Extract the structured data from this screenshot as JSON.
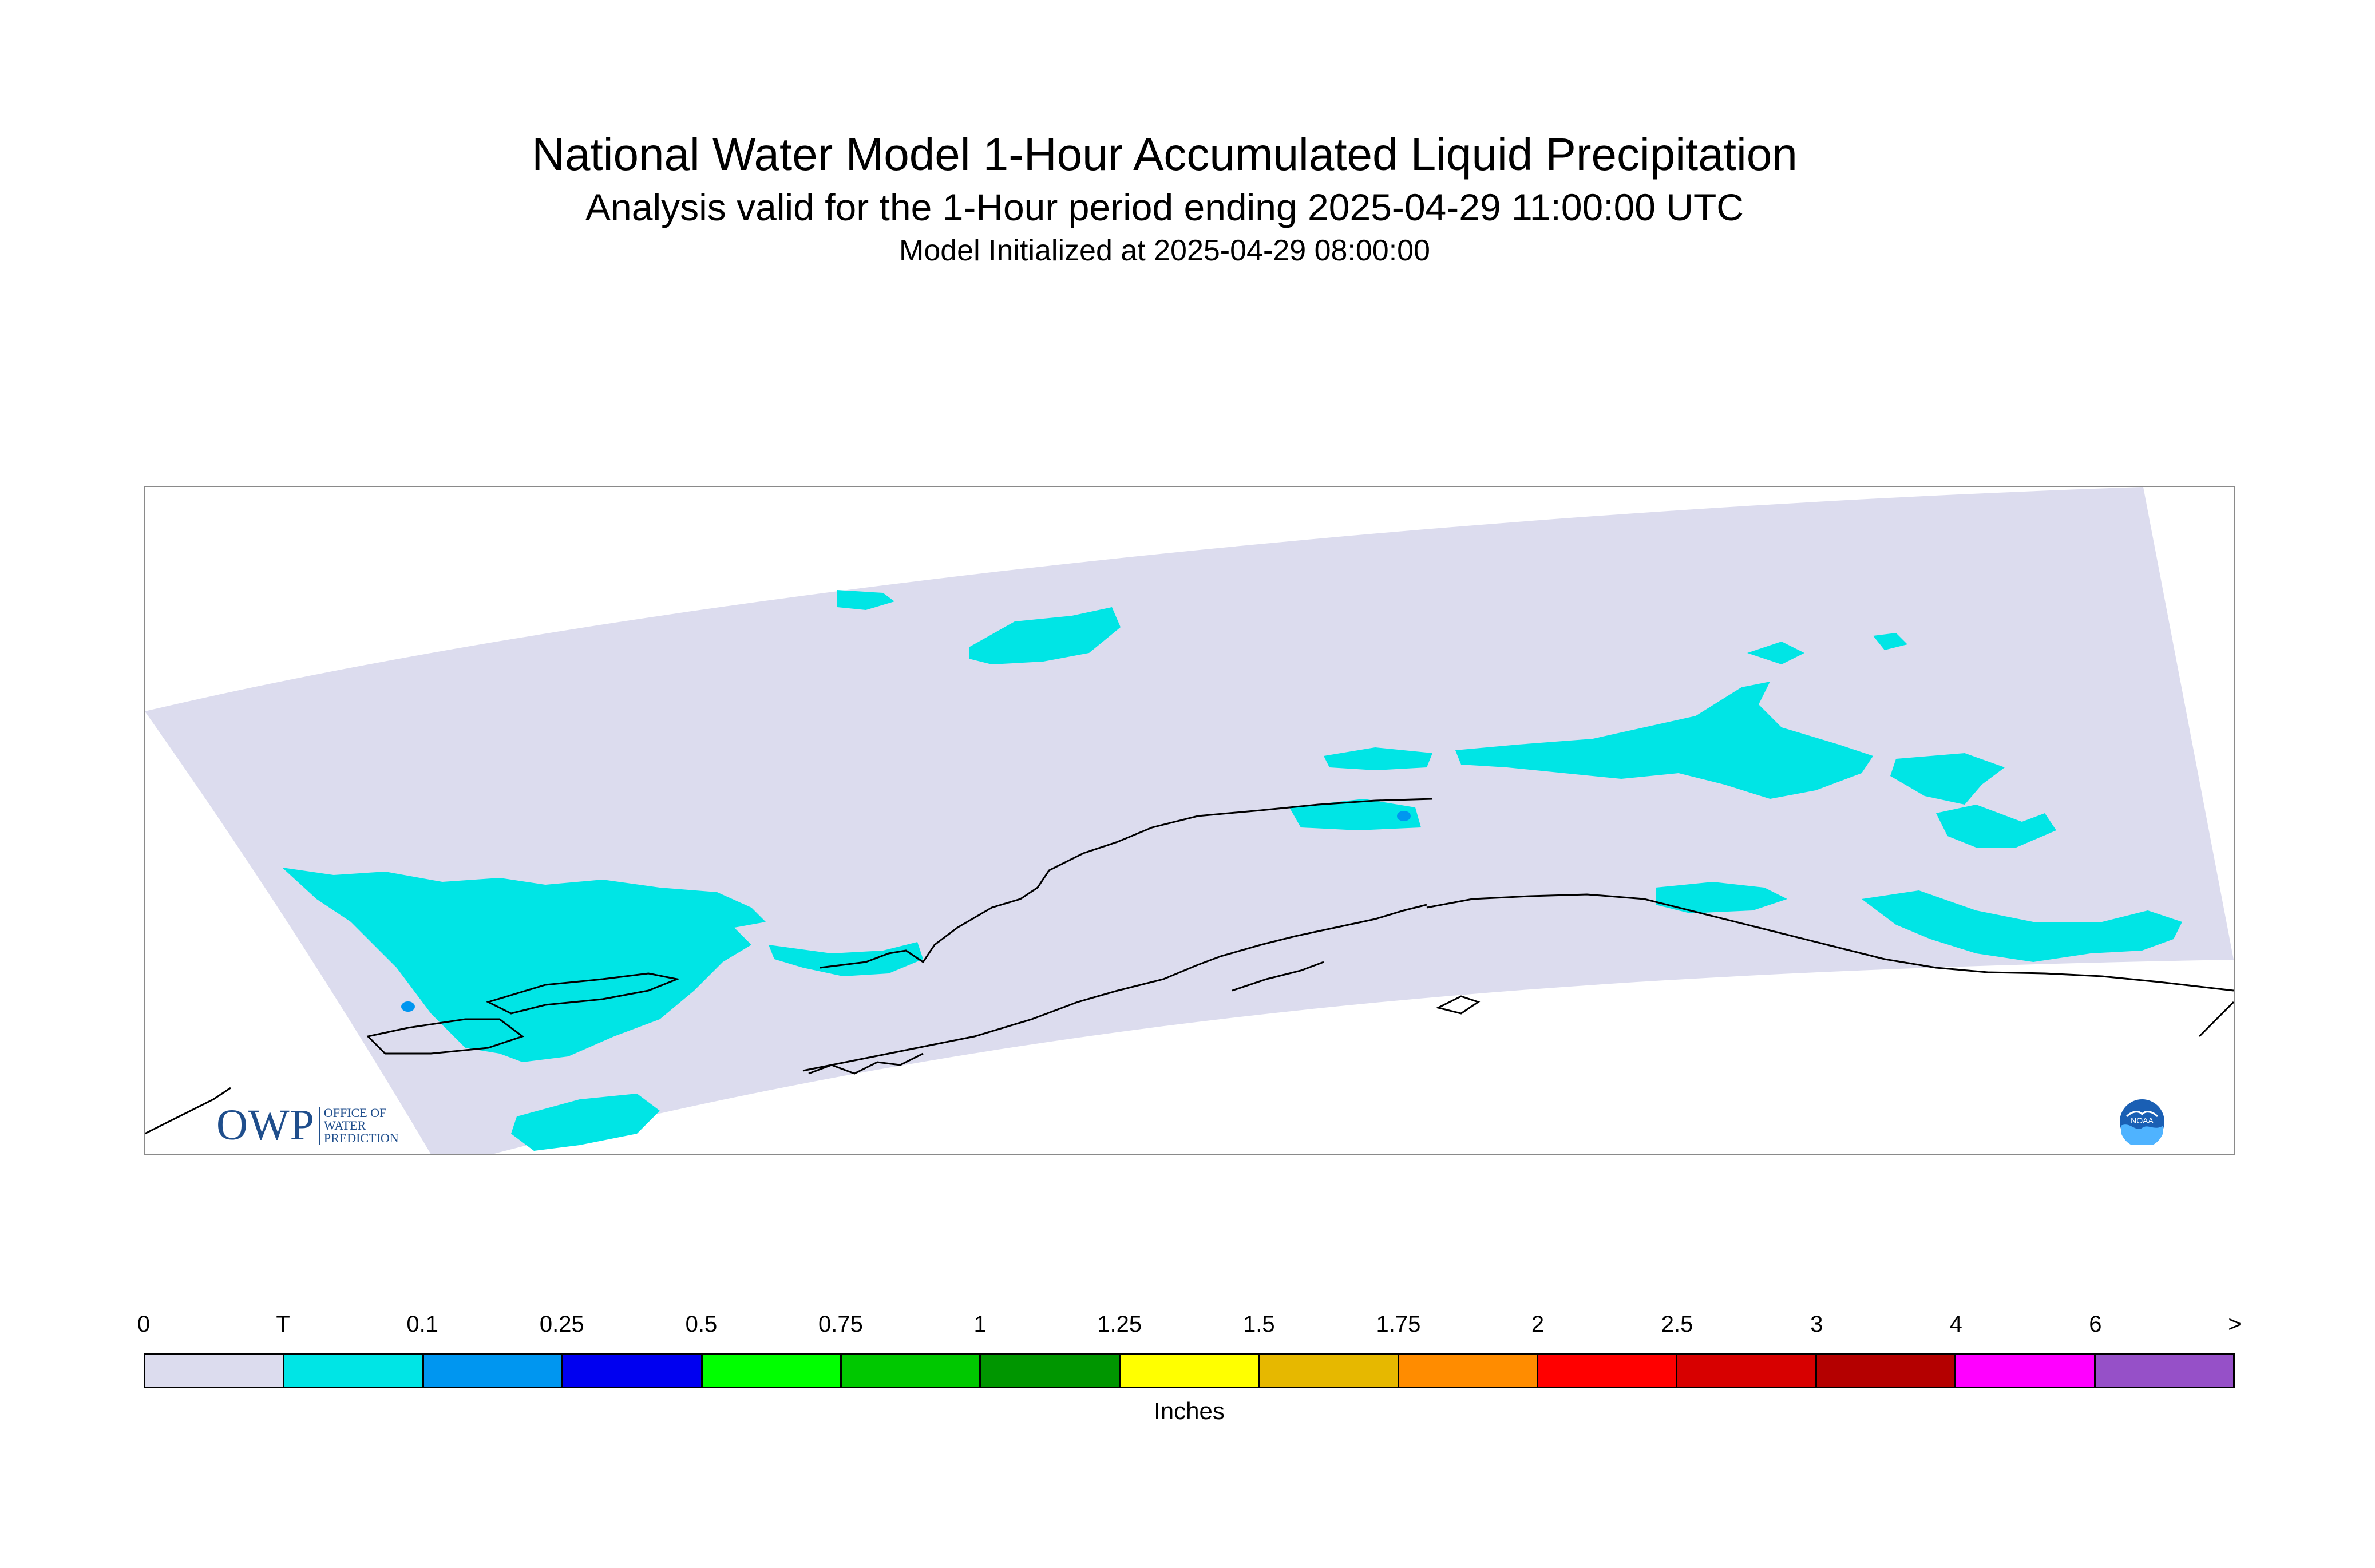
{
  "title": "National Water Model 1-Hour Accumulated Liquid Precipitation",
  "subtitle": "Analysis valid for the 1-Hour period ending 2025-04-29 11:00:00 UTC",
  "subtitle2": "Model Initialized at 2025-04-29 08:00:00",
  "logo_owp": {
    "mark": "OWP",
    "line1": "Office of",
    "line2": "Water",
    "line3": "Prediction"
  },
  "logo_noaa": {
    "text": "NOAA",
    "icon": "noaa-icon"
  },
  "map": {
    "domain_fill": "#dcdcee",
    "precip_fill": "#00e5e5",
    "heavy_fill": "#0096f0",
    "coastline": "#000000"
  },
  "legend": {
    "ticks": [
      "0",
      "T",
      "0.1",
      "0.25",
      "0.5",
      "0.75",
      "1",
      "1.25",
      "1.5",
      "1.75",
      "2",
      "2.5",
      "3",
      "4",
      "6",
      ">"
    ],
    "colors": [
      "#dcdcee",
      "#00e5e5",
      "#0096f0",
      "#0000f0",
      "#00ff00",
      "#00c800",
      "#009600",
      "#ffff00",
      "#e6b800",
      "#ff8c00",
      "#ff0000",
      "#d70000",
      "#b40000",
      "#ff00ff",
      "#9650c8"
    ],
    "units": "Inches"
  }
}
